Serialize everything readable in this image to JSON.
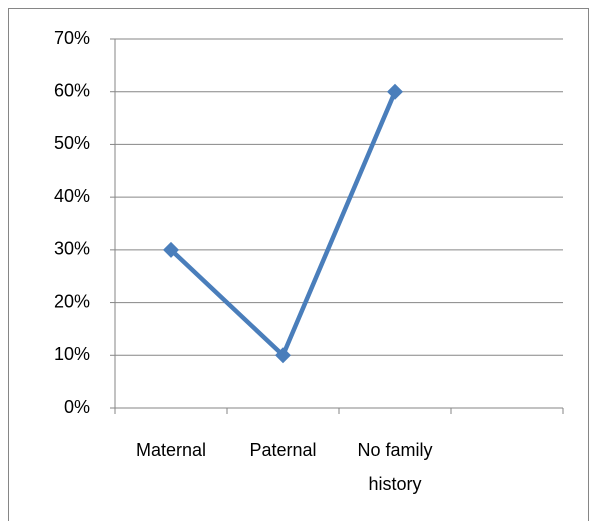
{
  "chart_data": {
    "type": "line",
    "categories": [
      "Maternal",
      "Paternal",
      "No family history",
      null
    ],
    "series": [
      {
        "color": "#4a7ebb",
        "values": [
          30,
          10,
          60,
          null
        ]
      }
    ],
    "ylim": [
      0,
      70
    ],
    "yticks": [
      {
        "value": 0,
        "label": "0%"
      },
      {
        "value": 10,
        "label": "10%"
      },
      {
        "value": 20,
        "label": "20%"
      },
      {
        "value": 30,
        "label": "30%"
      },
      {
        "value": 40,
        "label": "40%"
      },
      {
        "value": 50,
        "label": "50%"
      },
      {
        "value": 60,
        "label": "60%"
      },
      {
        "value": 70,
        "label": "70%"
      }
    ],
    "grid": true
  }
}
